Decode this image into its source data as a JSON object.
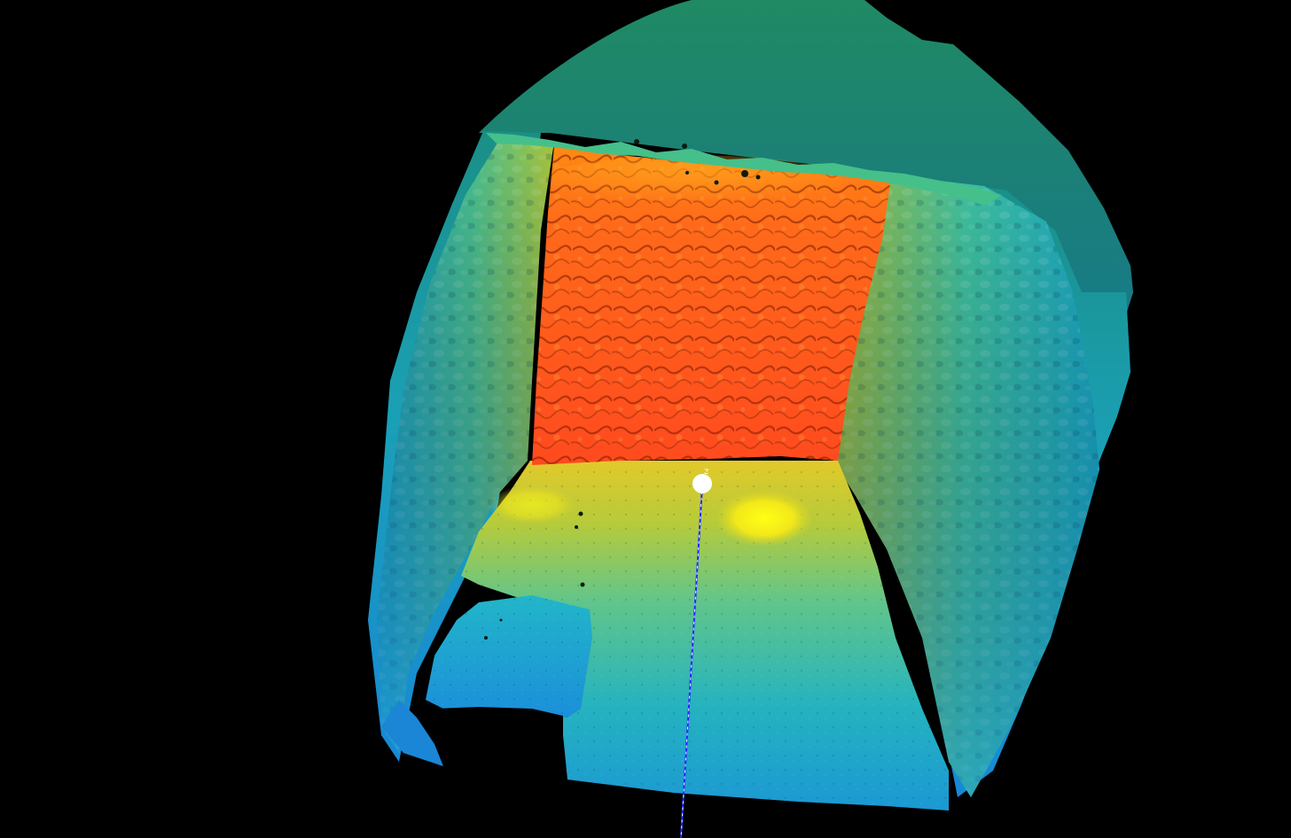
{
  "viewer": {
    "background_color": "#000000",
    "colormap": [
      "#1e8fd9",
      "#1bb1c9",
      "#3cc39a",
      "#bcd24a",
      "#f7f21a",
      "#ff9c1c",
      "#ff4a1e"
    ],
    "axis": {
      "label": "z",
      "line_color": "#1b2bff",
      "marker_color": "#ffffff"
    }
  }
}
